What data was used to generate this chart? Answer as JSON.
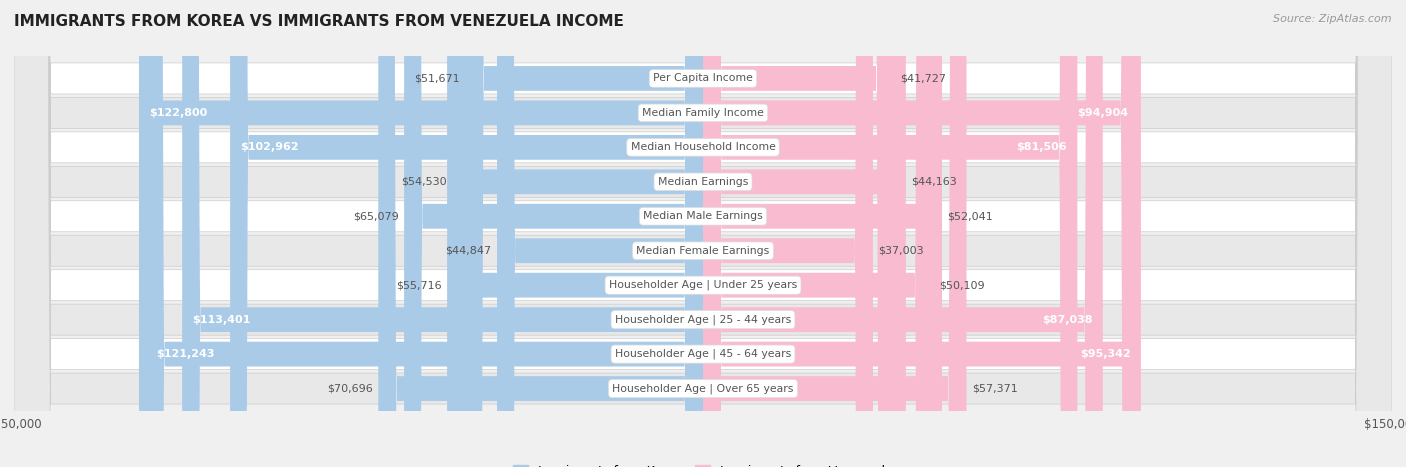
{
  "title": "IMMIGRANTS FROM KOREA VS IMMIGRANTS FROM VENEZUELA INCOME",
  "source": "Source: ZipAtlas.com",
  "categories": [
    "Per Capita Income",
    "Median Family Income",
    "Median Household Income",
    "Median Earnings",
    "Median Male Earnings",
    "Median Female Earnings",
    "Householder Age | Under 25 years",
    "Householder Age | 25 - 44 years",
    "Householder Age | 45 - 64 years",
    "Householder Age | Over 65 years"
  ],
  "korea_values": [
    51671,
    122800,
    102962,
    54530,
    65079,
    44847,
    55716,
    113401,
    121243,
    70696
  ],
  "venezuela_values": [
    41727,
    94904,
    81506,
    44163,
    52041,
    37003,
    50109,
    87038,
    95342,
    57371
  ],
  "korea_color_dark": "#6aaed6",
  "korea_color_light": "#aacbe8",
  "venezuela_color_dark": "#f06292",
  "venezuela_color_light": "#f8bbd0",
  "bar_label_inside_color": "#ffffff",
  "bar_label_outside_color": "#555555",
  "max_value": 150000,
  "legend_korea": "Immigrants from Korea",
  "legend_venezuela": "Immigrants from Venezuela",
  "bg_color": "#f0f0f0",
  "row_bg_even": "#ffffff",
  "row_bg_odd": "#e8e8e8",
  "center_label_bg": "#ffffff",
  "center_label_color": "#555555",
  "title_color": "#222222",
  "source_color": "#999999",
  "korea_inside_threshold": 90000,
  "venezuela_inside_threshold": 75000
}
